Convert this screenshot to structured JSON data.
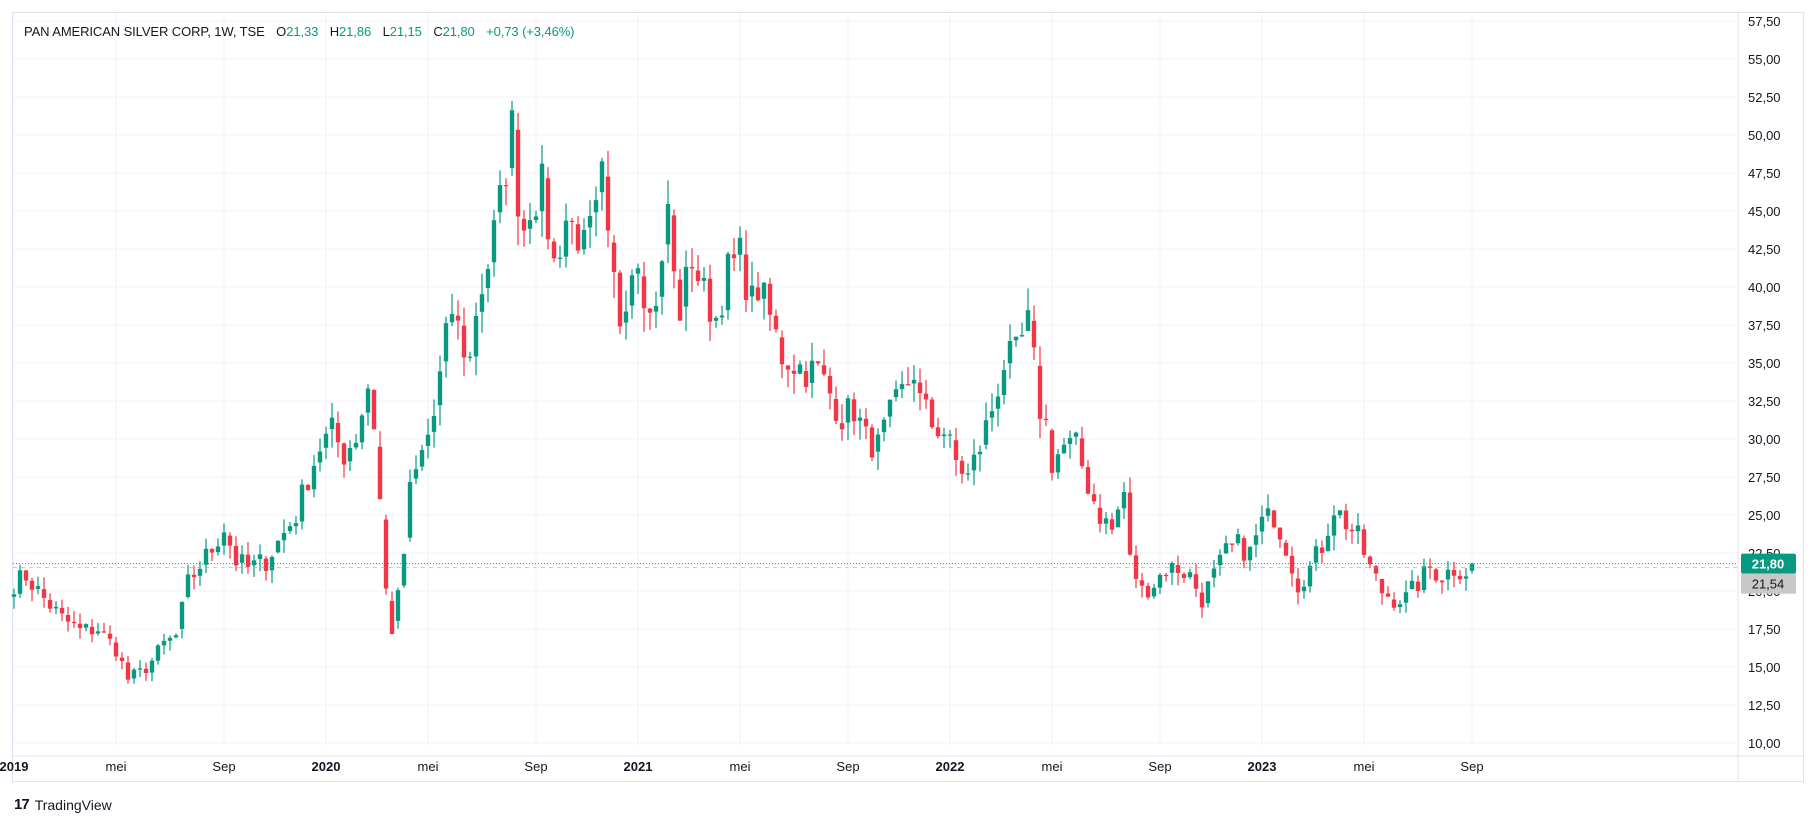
{
  "legend": {
    "name": "PAN AMERICAN SILVER CORP, 1W, TSE",
    "open_key": "O",
    "open": "21,33",
    "high_key": "H",
    "high": "21,86",
    "low_key": "L",
    "low": "21,15",
    "close_key": "C",
    "close": "21,80",
    "change": "+0,73 (+3,46%)"
  },
  "brand": {
    "logo": "17",
    "name": "TradingView"
  },
  "colors": {
    "up": "#089981",
    "down": "#f23645",
    "grid": "#f0f3fa",
    "last_price_bg": "#089981",
    "prev_close_bg": "#c8c8c8"
  },
  "chart_data": {
    "type": "candlestick",
    "symbol": "PAN AMERICAN SILVER CORP",
    "interval": "1W",
    "exchange": "TSE",
    "x_range": [
      "2019-01",
      "2023-10"
    ],
    "ylim": [
      10,
      57.5
    ],
    "grid": true,
    "y_ticks": [
      "10,00",
      "12,50",
      "15,00",
      "17,50",
      "20,00",
      "22,50",
      "25,00",
      "27,50",
      "30,00",
      "32,50",
      "35,00",
      "37,50",
      "40,00",
      "42,50",
      "45,00",
      "47,50",
      "50,00",
      "52,50",
      "55,00",
      "57,50"
    ],
    "y_tick_values": [
      10,
      12.5,
      15,
      17.5,
      20,
      22.5,
      25,
      27.5,
      30,
      32.5,
      35,
      37.5,
      40,
      42.5,
      45,
      47.5,
      50,
      52.5,
      55,
      57.5
    ],
    "x_ticks": [
      {
        "label": "2019",
        "week": 0,
        "year": true
      },
      {
        "label": "mei",
        "week": 17,
        "year": false
      },
      {
        "label": "Sep",
        "week": 35,
        "year": false
      },
      {
        "label": "2020",
        "week": 52,
        "year": true
      },
      {
        "label": "mei",
        "week": 69,
        "year": false
      },
      {
        "label": "Sep",
        "week": 87,
        "year": false
      },
      {
        "label": "2021",
        "week": 104,
        "year": true
      },
      {
        "label": "mei",
        "week": 121,
        "year": false
      },
      {
        "label": "Sep",
        "week": 139,
        "year": false
      },
      {
        "label": "2022",
        "week": 156,
        "year": true
      },
      {
        "label": "mei",
        "week": 173,
        "year": false
      },
      {
        "label": "Sep",
        "week": 191,
        "year": false
      },
      {
        "label": "2023",
        "week": 208,
        "year": true
      },
      {
        "label": "mei",
        "week": 225,
        "year": false
      },
      {
        "label": "Sep",
        "week": 243,
        "year": false
      }
    ],
    "last_price": 21.8,
    "last_price_label": "21,80",
    "prev_close": 21.54,
    "prev_close_label": "21,54",
    "anchors": [
      [
        0,
        20.5
      ],
      [
        2,
        21.0
      ],
      [
        5,
        19.5
      ],
      [
        8,
        18.2
      ],
      [
        11,
        17.4
      ],
      [
        14,
        17.5
      ],
      [
        17,
        16.2
      ],
      [
        19,
        14.2
      ],
      [
        21,
        14.6
      ],
      [
        23,
        15.4
      ],
      [
        25,
        16.5
      ],
      [
        27,
        17.0
      ],
      [
        29,
        20.5
      ],
      [
        31,
        21.7
      ],
      [
        33,
        22.8
      ],
      [
        35,
        24.2
      ],
      [
        37,
        22.0
      ],
      [
        39,
        21.5
      ],
      [
        42,
        22.0
      ],
      [
        44,
        23.2
      ],
      [
        47,
        25.0
      ],
      [
        49,
        27.5
      ],
      [
        51,
        29.5
      ],
      [
        53,
        30.5
      ],
      [
        55,
        29.0
      ],
      [
        57,
        30.2
      ],
      [
        59,
        33.5
      ],
      [
        60,
        31.0
      ],
      [
        61,
        26.0
      ],
      [
        62,
        20.0
      ],
      [
        63,
        17.5
      ],
      [
        64,
        19.5
      ],
      [
        65,
        22.5
      ],
      [
        66,
        26.5
      ],
      [
        68,
        29.0
      ],
      [
        70,
        31.5
      ],
      [
        72,
        36.5
      ],
      [
        73,
        38.5
      ],
      [
        75,
        36.0
      ],
      [
        76,
        35.2
      ],
      [
        77,
        38.5
      ],
      [
        79,
        41.5
      ],
      [
        81,
        45.5
      ],
      [
        82,
        48.0
      ],
      [
        83,
        50.5
      ],
      [
        84,
        46.0
      ],
      [
        85,
        44.0
      ],
      [
        86,
        45.5
      ],
      [
        88,
        46.5
      ],
      [
        90,
        41.5
      ],
      [
        92,
        44.5
      ],
      [
        94,
        43.5
      ],
      [
        95,
        42.5
      ],
      [
        97,
        44.5
      ],
      [
        98,
        47.0
      ],
      [
        99,
        42.5
      ],
      [
        101,
        38.0
      ],
      [
        103,
        41.5
      ],
      [
        104,
        42.5
      ],
      [
        105,
        40.0
      ],
      [
        106,
        38.0
      ],
      [
        108,
        41.0
      ],
      [
        109,
        45.5
      ],
      [
        110,
        40.5
      ],
      [
        111,
        38.5
      ],
      [
        113,
        42.0
      ],
      [
        115,
        39.5
      ],
      [
        117,
        38.0
      ],
      [
        119,
        41.0
      ],
      [
        121,
        42.0
      ],
      [
        123,
        39.0
      ],
      [
        124,
        40.0
      ],
      [
        126,
        38.0
      ],
      [
        128,
        35.5
      ],
      [
        130,
        35.0
      ],
      [
        132,
        34.5
      ],
      [
        134,
        34.5
      ],
      [
        136,
        33.0
      ],
      [
        138,
        31.5
      ],
      [
        140,
        32.0
      ],
      [
        142,
        30.0
      ],
      [
        144,
        29.5
      ],
      [
        146,
        31.5
      ],
      [
        148,
        33.0
      ],
      [
        150,
        34.5
      ],
      [
        151,
        32.5
      ],
      [
        153,
        31.0
      ],
      [
        155,
        30.5
      ],
      [
        157,
        28.5
      ],
      [
        159,
        27.5
      ],
      [
        161,
        29.5
      ],
      [
        163,
        32.0
      ],
      [
        165,
        35.0
      ],
      [
        167,
        35.5
      ],
      [
        169,
        37.5
      ],
      [
        170,
        35.0
      ],
      [
        171,
        32.0
      ],
      [
        172,
        31.0
      ],
      [
        173,
        28.5
      ],
      [
        175,
        29.5
      ],
      [
        177,
        29.5
      ],
      [
        179,
        27.0
      ],
      [
        181,
        25.0
      ],
      [
        183,
        24.0
      ],
      [
        185,
        26.5
      ],
      [
        186,
        22.0
      ],
      [
        188,
        20.0
      ],
      [
        190,
        20.5
      ],
      [
        192,
        21.5
      ],
      [
        194,
        21.5
      ],
      [
        196,
        21.0
      ],
      [
        198,
        19.5
      ],
      [
        200,
        21.0
      ],
      [
        202,
        22.5
      ],
      [
        204,
        23.0
      ],
      [
        206,
        22.5
      ],
      [
        208,
        24.5
      ],
      [
        210,
        25.0
      ],
      [
        212,
        23.0
      ],
      [
        214,
        20.5
      ],
      [
        216,
        21.5
      ],
      [
        218,
        23.0
      ],
      [
        220,
        25.5
      ],
      [
        222,
        24.5
      ],
      [
        224,
        23.5
      ],
      [
        226,
        21.5
      ],
      [
        228,
        20.0
      ],
      [
        230,
        19.5
      ],
      [
        232,
        19.5
      ],
      [
        234,
        20.5
      ],
      [
        236,
        21.5
      ],
      [
        238,
        21.0
      ],
      [
        240,
        21.5
      ],
      [
        242,
        21.3
      ],
      [
        243,
        21.8
      ]
    ]
  }
}
